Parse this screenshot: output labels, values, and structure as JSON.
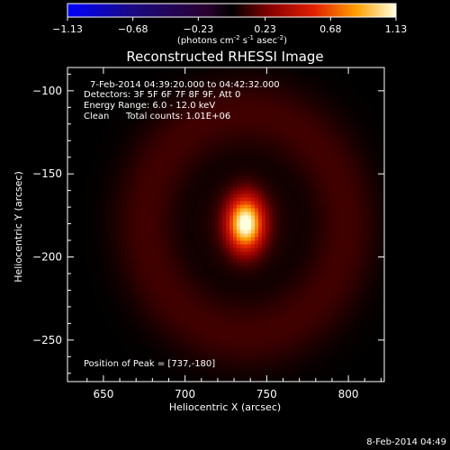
{
  "chart_data": {
    "type": "heatmap",
    "title": "Reconstructed RHESSI Image",
    "xlabel": "Heliocentric X (arcsec)",
    "ylabel": "Heliocentric Y (arcsec)",
    "x_ticks": [
      650,
      700,
      750,
      800
    ],
    "y_ticks": [
      -100,
      -150,
      -200,
      -250
    ],
    "xlim": [
      628,
      822
    ],
    "ylim": [
      -275,
      -86
    ],
    "colorbar": {
      "range": [
        -1.13,
        1.13
      ],
      "ticks": [
        "-1.13",
        "-0.68",
        "-0.23",
        "0.23",
        "0.68",
        "1.13"
      ],
      "label_prefix": "(photons cm",
      "label_sup1": "-2",
      "label_mid": " s",
      "label_sup2": "-1",
      "label_mid2": " asec",
      "label_sup3": "-2",
      "label_suffix": ")"
    },
    "annotations": {
      "time_range": "7-Feb-2014 04:39:20.000 to 04:42:32.000",
      "detectors": "Detectors: 3F 5F 6F 7F 8F 9F, Att 0",
      "energy": "Energy Range: 6.0 - 12.0 keV",
      "method": "Clean",
      "counts": "Total counts: 1.01E+06",
      "peak": "Position of Peak = [737,-180]"
    },
    "peak": {
      "x": 737,
      "y": -180,
      "value": 1.13
    },
    "source_sigma": {
      "x": 7.5,
      "y": 11
    },
    "ring": {
      "radius": 62,
      "level": 0.12
    }
  },
  "footer": {
    "timestamp": "8-Feb-2014 04:49"
  }
}
